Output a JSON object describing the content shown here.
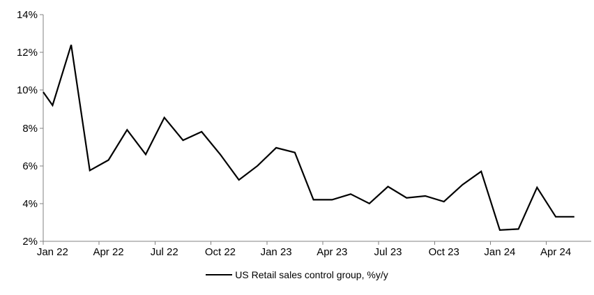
{
  "chart_data": {
    "type": "line",
    "title": "",
    "legend_label": "US Retail sales control group, %y/y",
    "legend_position": "bottom",
    "x": [
      "Jan 22",
      "Feb 22",
      "Mar 22",
      "Apr 22",
      "May 22",
      "Jun 22",
      "Jul 22",
      "Aug 22",
      "Sep 22",
      "Oct 22",
      "Nov 22",
      "Dec 22",
      "Jan 23",
      "Feb 23",
      "Mar 23",
      "Apr 23",
      "May 23",
      "Jun 23",
      "Jul 23",
      "Aug 23",
      "Sep 23",
      "Oct 23",
      "Nov 23",
      "Dec 23",
      "Jan 24",
      "Feb 24",
      "Mar 24",
      "Apr 24",
      "May 24"
    ],
    "series": [
      {
        "name": "US Retail sales control group, %y/y",
        "values": [
          9.2,
          12.4,
          5.75,
          6.3,
          7.9,
          6.6,
          8.55,
          7.35,
          7.8,
          6.6,
          5.25,
          6.0,
          6.95,
          6.7,
          4.2,
          4.2,
          4.5,
          4.0,
          4.9,
          4.3,
          4.4,
          4.1,
          5.0,
          5.7,
          2.6,
          2.65,
          4.85,
          3.3,
          3.3
        ],
        "color": "#000000"
      }
    ],
    "edge_clip_start_value": 9.9,
    "x_tick_labels": [
      "Jan 22",
      "Apr 22",
      "Jul 22",
      "Oct 22",
      "Jan 23",
      "Apr 23",
      "Jul 23",
      "Oct 23",
      "Jan 24",
      "Apr 24"
    ],
    "x_tick_interval_months": 3,
    "y_tick_labels": [
      "2%",
      "4%",
      "6%",
      "8%",
      "10%",
      "12%",
      "14%"
    ],
    "y_tick_values": [
      2,
      4,
      6,
      8,
      10,
      12,
      14
    ],
    "ylim": [
      2,
      14
    ],
    "grid": false,
    "axis_color": "#808080",
    "label_color": "#000000",
    "background": "#ffffff"
  }
}
